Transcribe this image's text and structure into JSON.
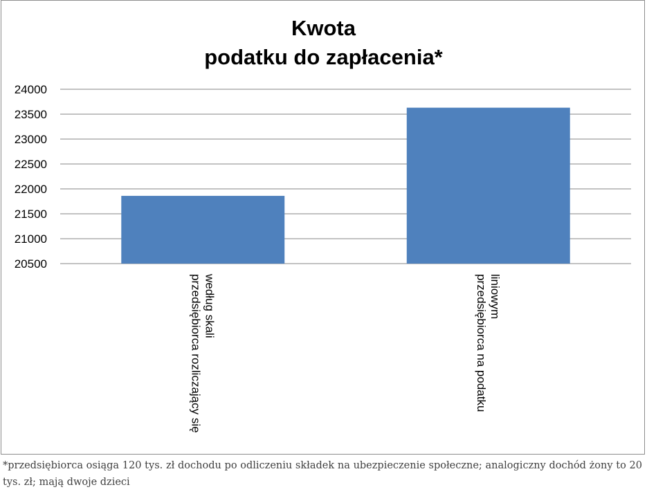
{
  "chart_data": {
    "type": "bar",
    "title_lines": [
      "Kwota",
      "podatku do zapłacenia*"
    ],
    "categories": [
      [
        "przedsiębiorca rozliczający się",
        "według skali"
      ],
      [
        "przedsiębiorca na podatku",
        "liniowym"
      ]
    ],
    "values": [
      21860,
      23630
    ],
    "ylim": [
      20500,
      24000
    ],
    "yticks": [
      "20500",
      "21000",
      "21500",
      "22000",
      "22500",
      "23000",
      "23500",
      "24000"
    ],
    "grid": true,
    "legend": "none",
    "bar_color": "#4f81bd",
    "grid_color": "#868686"
  },
  "footnote": "*przedsiębiorca osiąga 120 tys. zł dochodu po odliczeniu składek na ubezpieczenie społeczne; analogiczny dochód żony to 20 tys. zł; mają dwoje dzieci"
}
